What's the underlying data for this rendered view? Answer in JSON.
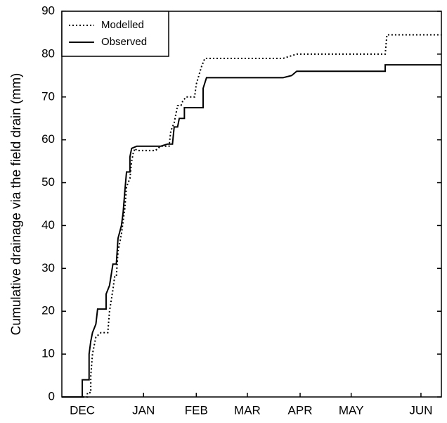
{
  "chart_data": {
    "type": "line",
    "y_label": "Cumulative drainage via the field drain (mm)",
    "xlim": [
      0,
      223
    ],
    "ylim": [
      0,
      90
    ],
    "xticks": [
      {
        "value": 12,
        "label": "DEC"
      },
      {
        "value": 48,
        "label": "JAN"
      },
      {
        "value": 79,
        "label": "FEB"
      },
      {
        "value": 109,
        "label": "MAR"
      },
      {
        "value": 140,
        "label": "APR"
      },
      {
        "value": 170,
        "label": "MAY"
      },
      {
        "value": 211,
        "label": "JUN"
      }
    ],
    "yticks": [
      0,
      10,
      20,
      30,
      40,
      50,
      60,
      70,
      80,
      90
    ],
    "legend": "upper left",
    "series": [
      {
        "name": "Modelled",
        "color": "#000000",
        "dash": "dotted",
        "x": [
          0,
          15,
          15,
          17,
          17,
          18,
          20,
          23,
          27,
          28,
          30,
          31,
          32,
          33,
          35,
          37,
          38,
          40,
          41,
          42,
          43,
          44,
          55,
          58,
          63,
          64,
          66,
          68,
          70,
          71,
          73,
          78,
          79,
          82,
          84,
          130,
          138,
          190,
          191,
          223
        ],
        "values": [
          0,
          0,
          1,
          1,
          5,
          10,
          14,
          15,
          15,
          20,
          25,
          28,
          28,
          34,
          38,
          44,
          49,
          51,
          55,
          57,
          58,
          57.5,
          57.5,
          58.5,
          58.5,
          62,
          64,
          68,
          68,
          69,
          70,
          70,
          73,
          77,
          79,
          79,
          80,
          80,
          84.5,
          84.5
        ]
      },
      {
        "name": "Observed",
        "color": "#000000",
        "dash": "solid",
        "x": [
          0,
          12,
          12,
          16,
          16,
          17,
          18,
          20,
          21,
          26,
          26,
          28,
          30,
          32,
          33,
          35,
          36,
          37,
          38,
          40,
          40,
          41,
          44,
          58,
          62,
          65,
          66,
          68,
          69,
          72,
          72,
          83,
          83,
          85,
          130,
          135,
          138,
          190,
          190,
          223
        ],
        "values": [
          0,
          0,
          4,
          4,
          10,
          13,
          15,
          17,
          20.5,
          20.5,
          24,
          26,
          31,
          31,
          37,
          40,
          43,
          48,
          52.5,
          52.5,
          56,
          58,
          58.5,
          58.5,
          59,
          59,
          63,
          63,
          65,
          65,
          67.5,
          67.5,
          72,
          74.5,
          74.5,
          75,
          76,
          76,
          77.5,
          77.5
        ]
      }
    ]
  }
}
